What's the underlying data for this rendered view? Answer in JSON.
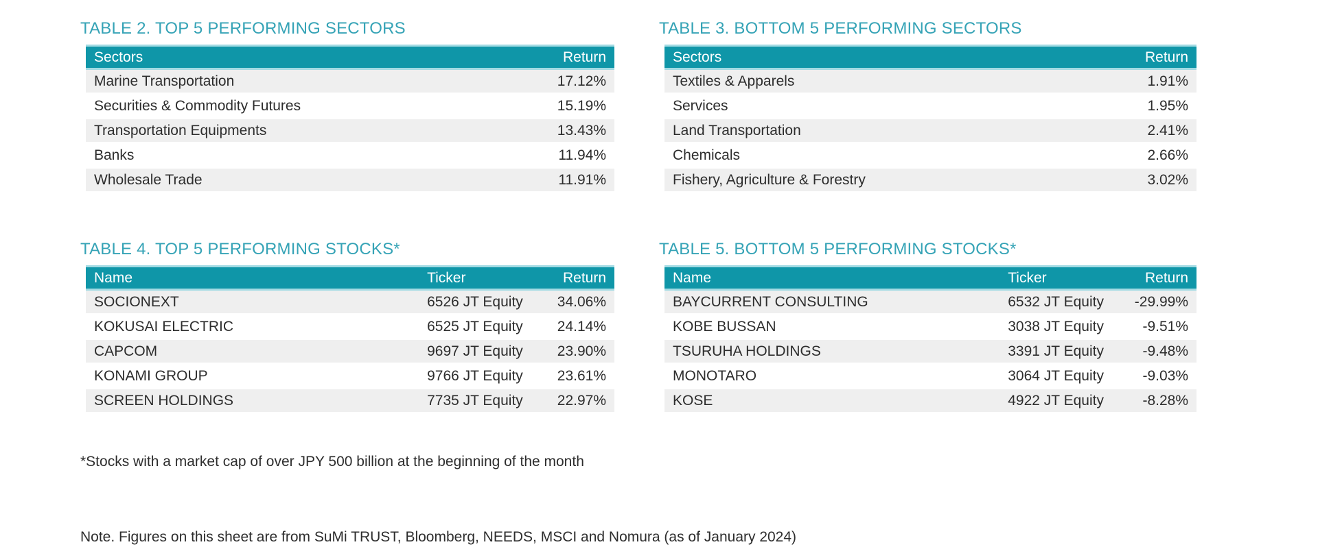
{
  "colors": {
    "accent_teal": "#0F96A8",
    "title_teal": "#35A3B6",
    "row_stripe": "#EFEFEF",
    "header_edge": "#A3DBE3",
    "text": "#2D2D2D",
    "header_text": "#FFFFFF"
  },
  "tables": {
    "top_sectors": {
      "title": "TABLE 2. TOP 5 PERFORMING SECTORS",
      "columns": {
        "c1": "Sectors",
        "c2": "Return"
      },
      "rows": [
        {
          "c1": "Marine Transportation",
          "c2": "17.12%"
        },
        {
          "c1": "Securities & Commodity Futures",
          "c2": "15.19%"
        },
        {
          "c1": "Transportation Equipments",
          "c2": "13.43%"
        },
        {
          "c1": "Banks",
          "c2": "11.94%"
        },
        {
          "c1": "Wholesale Trade",
          "c2": "11.91%"
        }
      ]
    },
    "bottom_sectors": {
      "title": "TABLE 3. BOTTOM 5 PERFORMING SECTORS",
      "columns": {
        "c1": "Sectors",
        "c2": "Return"
      },
      "rows": [
        {
          "c1": "Textiles & Apparels",
          "c2": "1.91%"
        },
        {
          "c1": "Services",
          "c2": "1.95%"
        },
        {
          "c1": "Land Transportation",
          "c2": "2.41%"
        },
        {
          "c1": "Chemicals",
          "c2": "2.66%"
        },
        {
          "c1": "Fishery, Agriculture & Forestry",
          "c2": "3.02%"
        }
      ]
    },
    "top_stocks": {
      "title": "TABLE 4. TOP 5 PERFORMING STOCKS*",
      "columns": {
        "c1": "Name",
        "c2": "Ticker",
        "c3": "Return"
      },
      "rows": [
        {
          "c1": "SOCIONEXT",
          "c2": "6526 JT Equity",
          "c3": "34.06%"
        },
        {
          "c1": "KOKUSAI ELECTRIC",
          "c2": "6525 JT Equity",
          "c3": "24.14%"
        },
        {
          "c1": "CAPCOM",
          "c2": "9697 JT Equity",
          "c3": "23.90%"
        },
        {
          "c1": "KONAMI GROUP",
          "c2": "9766 JT Equity",
          "c3": "23.61%"
        },
        {
          "c1": "SCREEN HOLDINGS",
          "c2": "7735 JT Equity",
          "c3": "22.97%"
        }
      ]
    },
    "bottom_stocks": {
      "title": "TABLE 5. BOTTOM 5 PERFORMING STOCKS*",
      "columns": {
        "c1": "Name",
        "c2": "Ticker",
        "c3": "Return"
      },
      "rows": [
        {
          "c1": "BAYCURRENT CONSULTING",
          "c2": "6532 JT Equity",
          "c3": "-29.99%"
        },
        {
          "c1": "KOBE BUSSAN",
          "c2": "3038 JT Equity",
          "c3": "-9.51%"
        },
        {
          "c1": "TSURUHA HOLDINGS",
          "c2": "3391 JT Equity",
          "c3": "-9.48%"
        },
        {
          "c1": "MONOTARO",
          "c2": "3064 JT Equity",
          "c3": "-9.03%"
        },
        {
          "c1": "KOSE",
          "c2": "4922 JT Equity",
          "c3": "-8.28%"
        }
      ]
    }
  },
  "footnotes": {
    "market_cap": "*Stocks with a market cap of over JPY 500 billion at the beginning of the month",
    "source": "Note. Figures on this sheet are from SuMi TRUST, Bloomberg, NEEDS, MSCI and Nomura (as of January 2024)"
  }
}
